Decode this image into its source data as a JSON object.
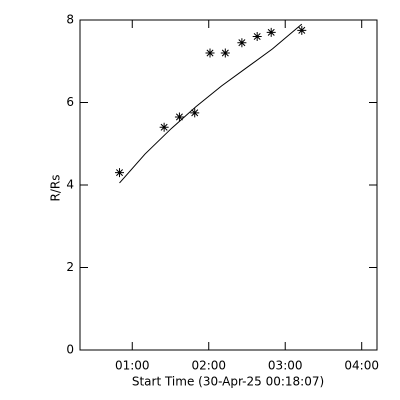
{
  "chart_data": {
    "type": "scatter",
    "x_label": "Start Time (30-Apr-25 00:18:07)",
    "y_label": "R/Rs",
    "xlim": [
      19,
      252
    ],
    "ylim": [
      0,
      8
    ],
    "xticks": [
      {
        "value": 60,
        "label": "01:00"
      },
      {
        "value": 120,
        "label": "02:00"
      },
      {
        "value": 180,
        "label": "03:00"
      },
      {
        "value": 240,
        "label": "04:00"
      }
    ],
    "yticks": [
      0,
      2,
      4,
      6,
      8
    ],
    "series": [
      {
        "style": "asterisk",
        "color": "#000000",
        "x": [
          50,
          85,
          97,
          109,
          121,
          133,
          146,
          158,
          169,
          193
        ],
        "values": [
          4.3,
          5.4,
          5.65,
          5.75,
          7.2,
          7.2,
          7.45,
          7.6,
          7.7,
          7.75
        ]
      },
      {
        "style": "line",
        "color": "#000000",
        "x": [
          50,
          70,
          90,
          110,
          130,
          150,
          170,
          193
        ],
        "values": [
          4.05,
          4.75,
          5.35,
          5.9,
          6.4,
          6.85,
          7.3,
          7.9
        ]
      }
    ]
  }
}
